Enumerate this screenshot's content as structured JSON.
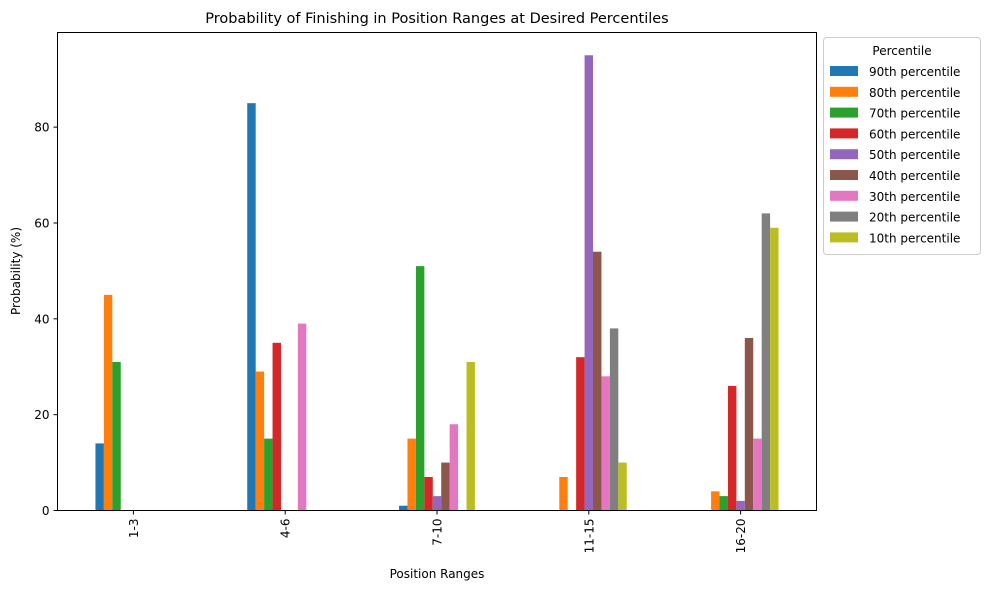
{
  "chart_data": {
    "type": "bar",
    "title": "Probability of Finishing in Position Ranges at Desired Percentiles",
    "xlabel": "Position Ranges",
    "ylabel": "Probability (%)",
    "categories": [
      "1-3",
      "4-6",
      "7-10",
      "11-15",
      "16-20"
    ],
    "ylim": [
      0,
      99.75
    ],
    "yticks": [
      0,
      20,
      40,
      60,
      80
    ],
    "grid": false,
    "legend": {
      "title": "Percentile",
      "placement": "outside-upper-right"
    },
    "series": [
      {
        "name": "90th percentile",
        "color": "#1f77b4",
        "values": [
          14,
          85,
          1,
          0,
          0
        ]
      },
      {
        "name": "80th percentile",
        "color": "#ff7f0e",
        "values": [
          45,
          29,
          15,
          7,
          4
        ]
      },
      {
        "name": "70th percentile",
        "color": "#2ca02c",
        "values": [
          31,
          15,
          51,
          0,
          3
        ]
      },
      {
        "name": "60th percentile",
        "color": "#d62728",
        "values": [
          0,
          35,
          7,
          32,
          26
        ]
      },
      {
        "name": "50th percentile",
        "color": "#9467bd",
        "values": [
          0,
          0,
          3,
          95,
          2
        ]
      },
      {
        "name": "40th percentile",
        "color": "#8c564b",
        "values": [
          0,
          0,
          10,
          54,
          36
        ]
      },
      {
        "name": "30th percentile",
        "color": "#e377c2",
        "values": [
          0,
          39,
          18,
          28,
          15
        ]
      },
      {
        "name": "20th percentile",
        "color": "#7f7f7f",
        "values": [
          0,
          0,
          0,
          38,
          62
        ]
      },
      {
        "name": "10th percentile",
        "color": "#bcbd22",
        "values": [
          0,
          0,
          31,
          10,
          59
        ]
      }
    ]
  }
}
